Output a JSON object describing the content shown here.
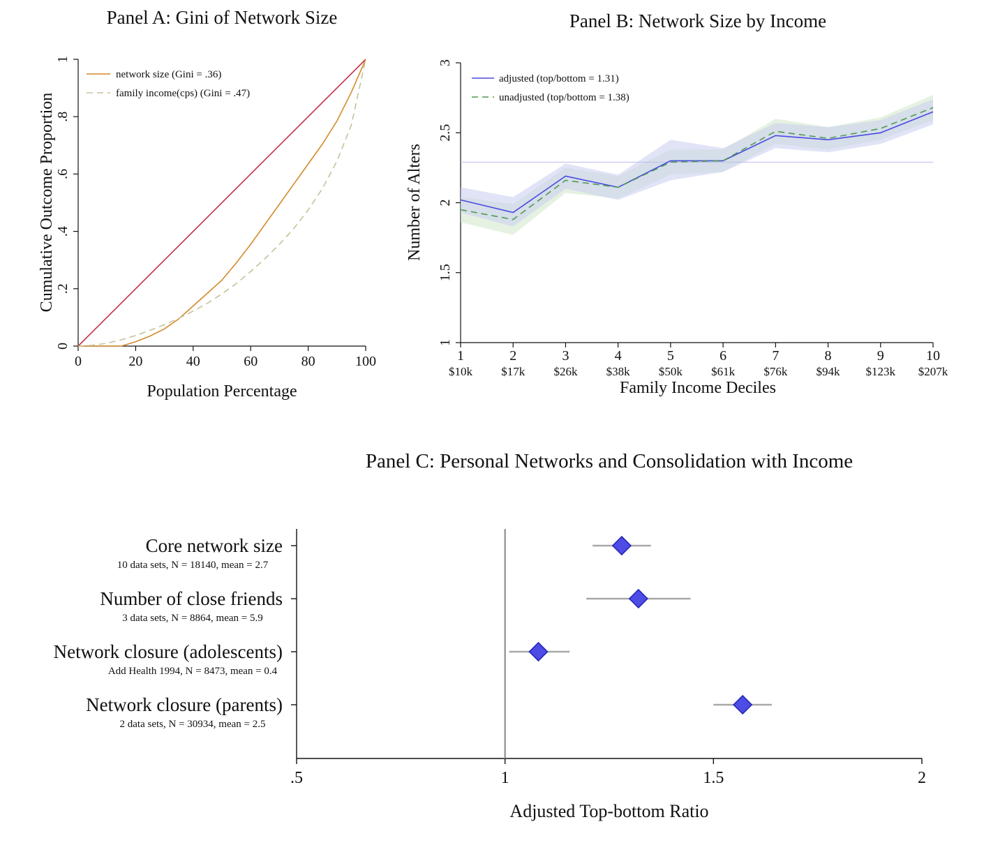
{
  "chart_data": [
    {
      "id": "panelA",
      "type": "line",
      "title": "Panel A: Gini of Network Size",
      "xlabel": "Population Percentage",
      "ylabel": "Cumulative Outcome Proportion",
      "xlim": [
        0,
        100
      ],
      "ylim": [
        0,
        1
      ],
      "xticks": [
        0,
        20,
        40,
        60,
        80,
        100
      ],
      "xtick_labels": [
        "0",
        "20",
        "40",
        "60",
        "80",
        "100"
      ],
      "yticks": [
        0,
        0.2,
        0.4,
        0.6,
        0.8,
        1
      ],
      "ytick_labels": [
        "0",
        ".2",
        ".4",
        ".6",
        ".8",
        "1"
      ],
      "legend_position": "top-left",
      "series": [
        {
          "name": "equality",
          "legend": false,
          "color": "#c0304a",
          "style": "solid",
          "x": [
            0,
            100
          ],
          "y": [
            0,
            1
          ]
        },
        {
          "name": "network size (Gini = .36)",
          "legend": true,
          "color": "#d4892a",
          "style": "solid",
          "x": [
            0,
            15,
            20,
            25,
            30,
            35,
            40,
            45,
            50,
            55,
            60,
            65,
            70,
            75,
            80,
            85,
            90,
            95,
            100
          ],
          "y": [
            0,
            0,
            0.015,
            0.035,
            0.06,
            0.095,
            0.14,
            0.185,
            0.23,
            0.29,
            0.355,
            0.425,
            0.495,
            0.565,
            0.635,
            0.705,
            0.785,
            0.885,
            1.0
          ]
        },
        {
          "name": "family income(cps) (Gini = .47)",
          "legend": true,
          "color": "#c8c09a",
          "style": "dashed",
          "x": [
            0,
            5,
            10,
            15,
            20,
            25,
            30,
            35,
            40,
            45,
            50,
            55,
            60,
            65,
            70,
            75,
            80,
            85,
            90,
            95,
            100
          ],
          "y": [
            0,
            0.003,
            0.01,
            0.022,
            0.037,
            0.055,
            0.075,
            0.097,
            0.122,
            0.15,
            0.182,
            0.218,
            0.26,
            0.305,
            0.355,
            0.41,
            0.475,
            0.55,
            0.645,
            0.77,
            1.0
          ]
        }
      ]
    },
    {
      "id": "panelB",
      "type": "line",
      "title": "Panel B: Network Size by Income",
      "xlabel": "Family Income Deciles",
      "ylabel": "Number of Alters",
      "xlim": [
        1,
        10
      ],
      "ylim": [
        1,
        3
      ],
      "xticks": [
        1,
        2,
        3,
        4,
        5,
        6,
        7,
        8,
        9,
        10
      ],
      "xtick_labels": [
        "1",
        "2",
        "3",
        "4",
        "5",
        "6",
        "7",
        "8",
        "9",
        "10"
      ],
      "xtick_sublabels": [
        "$10k",
        "$17k",
        "$26k",
        "$38k",
        "$50k",
        "$61k",
        "$76k",
        "$94k",
        "$123k",
        "$207k"
      ],
      "yticks": [
        1,
        1.5,
        2,
        2.5,
        3
      ],
      "ytick_labels": [
        "1",
        "1.5",
        "2",
        "2.5",
        "3"
      ],
      "reference_line": 2.29,
      "legend_position": "top-left",
      "series": [
        {
          "name": "adjusted (top/bottom = 1.31)",
          "color": "#4a4ae0",
          "style": "solid",
          "x": [
            1,
            2,
            3,
            4,
            5,
            6,
            7,
            8,
            9,
            10
          ],
          "y": [
            2.02,
            1.93,
            2.19,
            2.11,
            2.3,
            2.3,
            2.48,
            2.45,
            2.5,
            2.65
          ],
          "ci_low": [
            1.93,
            1.83,
            2.1,
            2.02,
            2.16,
            2.22,
            2.39,
            2.36,
            2.42,
            2.56
          ],
          "ci_high": [
            2.11,
            2.04,
            2.28,
            2.2,
            2.45,
            2.39,
            2.57,
            2.54,
            2.59,
            2.74
          ]
        },
        {
          "name": "unadjusted (top/bottom = 1.38)",
          "color": "#4f9a4f",
          "style": "dashed",
          "x": [
            1,
            2,
            3,
            4,
            5,
            6,
            7,
            8,
            9,
            10
          ],
          "y": [
            1.95,
            1.88,
            2.16,
            2.11,
            2.29,
            2.3,
            2.51,
            2.46,
            2.53,
            2.68
          ],
          "ci_low": [
            1.86,
            1.77,
            2.07,
            2.03,
            2.2,
            2.22,
            2.42,
            2.38,
            2.45,
            2.59
          ],
          "ci_high": [
            2.04,
            1.99,
            2.25,
            2.19,
            2.38,
            2.38,
            2.6,
            2.54,
            2.61,
            2.77
          ]
        }
      ]
    },
    {
      "id": "panelC",
      "type": "scatter",
      "title": "Panel C: Personal Networks and Consolidation with Income",
      "xlabel": "Adjusted Top-bottom Ratio",
      "xlim": [
        0.5,
        2
      ],
      "xticks": [
        0.5,
        1,
        1.5,
        2
      ],
      "xtick_labels": [
        ".5",
        "1",
        "1.5",
        "2"
      ],
      "reference_line": 1,
      "rows": [
        {
          "label": "Core network size",
          "sublabel": "10 data sets, N = 18140, mean = 2.7",
          "value": 1.28,
          "ci": [
            1.21,
            1.35
          ]
        },
        {
          "label": "Number of close friends",
          "sublabel": "3 data sets, N = 8864, mean = 5.9",
          "value": 1.32,
          "ci": [
            1.195,
            1.445
          ]
        },
        {
          "label": "Network closure (adolescents)",
          "sublabel": "Add Health 1994, N = 8473, mean = 0.4",
          "value": 1.08,
          "ci": [
            1.01,
            1.155
          ]
        },
        {
          "label": "Network closure (parents)",
          "sublabel": "2 data sets, N = 30934, mean = 2.5",
          "value": 1.57,
          "ci": [
            1.5,
            1.64
          ]
        }
      ]
    }
  ]
}
